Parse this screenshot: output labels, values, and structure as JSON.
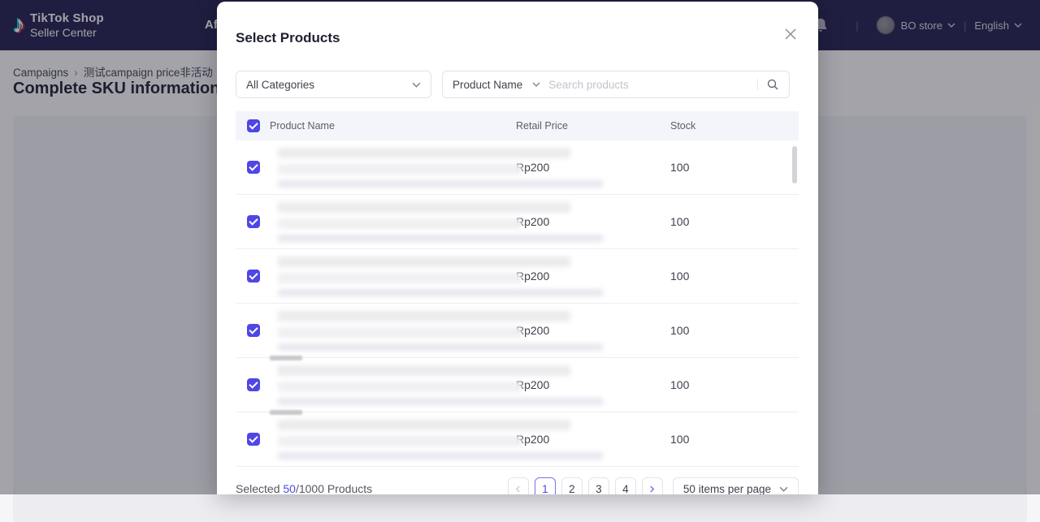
{
  "header": {
    "logo_line1": "TikTok Shop",
    "logo_line2": "Seller Center",
    "nav_partial_label": "Af",
    "store_name": "BO store",
    "language": "English"
  },
  "page": {
    "breadcrumb_home": "Campaigns",
    "breadcrumb_current": "测试campaign price非活动",
    "title": "Complete SKU information"
  },
  "modal": {
    "title": "Select Products",
    "filters": {
      "category_value": "All Categories",
      "search_field_value": "Product Name",
      "search_placeholder": "Search products"
    },
    "table": {
      "columns": {
        "name": "Product Name",
        "price": "Retail Price",
        "stock": "Stock"
      },
      "rows": [
        {
          "retail_price": "Rp200",
          "stock": "100",
          "checked": true,
          "thumb": "blue",
          "topline": false
        },
        {
          "retail_price": "Rp200",
          "stock": "100",
          "checked": true,
          "thumb": "blue",
          "topline": false
        },
        {
          "retail_price": "Rp200",
          "stock": "100",
          "checked": true,
          "thumb": "dark",
          "topline": false
        },
        {
          "retail_price": "Rp200",
          "stock": "100",
          "checked": true,
          "thumb": "dark",
          "topline": false
        },
        {
          "retail_price": "Rp200",
          "stock": "100",
          "checked": true,
          "thumb": "lightblue",
          "topline": true
        },
        {
          "retail_price": "Rp200",
          "stock": "100",
          "checked": true,
          "thumb": "lightblue",
          "topline": true
        }
      ]
    },
    "footer": {
      "selected_prefix": "Selected ",
      "selected_count": "50",
      "selected_suffix": "/1000 Products",
      "pages": [
        "1",
        "2",
        "3",
        "4"
      ],
      "active_page": "1",
      "per_page_value": "50 items per page"
    }
  },
  "colors": {
    "accent": "#4f46e5",
    "header_bg": "#2a2654",
    "link": "#4f4ae2",
    "thumbs": {
      "blue": [
        "#9dbdd8",
        "#68a4d8",
        "#55a0dc",
        "#86aed0",
        "#68a4d8",
        "#5ba2de",
        "#c5d4de",
        "#c18e90",
        "#abc6d6"
      ],
      "dark": [
        "#6e7a85",
        "#5c6773",
        "#5f6a76",
        "#a69789",
        "#8b7b6e",
        "#3c4a58",
        "#544740",
        "#6b584e",
        "#382e2b"
      ],
      "lightblue": [
        "#86bede",
        "#66b2e2",
        "#66b2e2",
        "#74abc6",
        "#5caede",
        "#62b0e0",
        "#bdd0de",
        "#cb9c98",
        "#aac9dd"
      ]
    }
  }
}
